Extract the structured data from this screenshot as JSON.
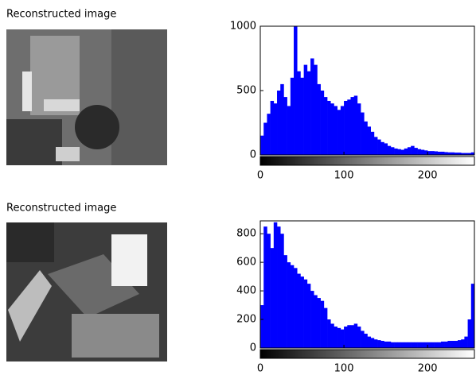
{
  "images": [
    {
      "title": "Reconstructed image"
    },
    {
      "title": "Reconstructed image"
    }
  ],
  "chart_data": [
    {
      "type": "histogram",
      "color": "#0000ff",
      "bins": [
        0,
        4,
        8,
        12,
        16,
        20,
        24,
        28,
        32,
        36,
        40,
        44,
        48,
        52,
        56,
        60,
        64,
        68,
        72,
        76,
        80,
        84,
        88,
        92,
        96,
        100,
        104,
        108,
        112,
        116,
        120,
        124,
        128,
        132,
        136,
        140,
        144,
        148,
        152,
        156,
        160,
        164,
        168,
        172,
        176,
        180,
        184,
        188,
        192,
        196,
        200,
        204,
        208,
        212,
        216,
        220,
        224,
        228,
        232,
        236,
        240,
        244,
        248,
        252,
        256
      ],
      "values": [
        150,
        250,
        320,
        420,
        400,
        500,
        550,
        450,
        380,
        600,
        1000,
        650,
        600,
        700,
        650,
        750,
        700,
        550,
        500,
        450,
        420,
        400,
        380,
        350,
        380,
        420,
        430,
        450,
        460,
        400,
        330,
        260,
        220,
        180,
        140,
        120,
        100,
        90,
        70,
        60,
        50,
        45,
        40,
        50,
        60,
        70,
        55,
        45,
        40,
        35,
        30,
        30,
        28,
        25,
        25,
        22,
        20,
        20,
        18,
        18,
        15,
        15,
        15,
        20
      ],
      "xlim": [
        0,
        256
      ],
      "xticks": [
        0,
        100,
        200
      ],
      "ylim": [
        0,
        1000
      ],
      "yticks": [
        0,
        500,
        1000
      ]
    },
    {
      "type": "histogram",
      "color": "#0000ff",
      "bins": [
        0,
        4,
        8,
        12,
        16,
        20,
        24,
        28,
        32,
        36,
        40,
        44,
        48,
        52,
        56,
        60,
        64,
        68,
        72,
        76,
        80,
        84,
        88,
        92,
        96,
        100,
        104,
        108,
        112,
        116,
        120,
        124,
        128,
        132,
        136,
        140,
        144,
        148,
        152,
        156,
        160,
        164,
        168,
        172,
        176,
        180,
        184,
        188,
        192,
        196,
        200,
        204,
        208,
        212,
        216,
        220,
        224,
        228,
        232,
        236,
        240,
        244,
        248,
        252,
        256
      ],
      "values": [
        300,
        850,
        800,
        700,
        880,
        850,
        800,
        650,
        600,
        580,
        560,
        520,
        500,
        480,
        450,
        400,
        370,
        350,
        330,
        280,
        200,
        170,
        150,
        140,
        130,
        150,
        160,
        160,
        170,
        150,
        120,
        100,
        80,
        70,
        60,
        55,
        50,
        45,
        45,
        40,
        40,
        40,
        40,
        40,
        40,
        40,
        40,
        40,
        40,
        40,
        40,
        40,
        40,
        40,
        45,
        45,
        50,
        50,
        50,
        55,
        60,
        80,
        200,
        450
      ],
      "xlim": [
        0,
        256
      ],
      "xticks": [
        0,
        100,
        200
      ],
      "ylim": [
        0,
        890
      ],
      "yticks": [
        0,
        200,
        400,
        600,
        800
      ]
    }
  ]
}
